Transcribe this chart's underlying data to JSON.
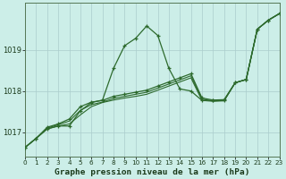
{
  "title": "Graphe pression niveau de la mer (hPa)",
  "bg_color": "#cceee8",
  "grid_color": "#aacccc",
  "line_color": "#2d6a2d",
  "ylim": [
    1016.4,
    1020.15
  ],
  "xlim": [
    0,
    23
  ],
  "yticks": [
    1017,
    1018,
    1019
  ],
  "xticks": [
    0,
    1,
    2,
    3,
    4,
    5,
    6,
    7,
    8,
    9,
    10,
    11,
    12,
    13,
    14,
    15,
    16,
    17,
    18,
    19,
    20,
    21,
    22,
    23
  ],
  "series": [
    {
      "y": [
        1016.63,
        1016.85,
        1017.08,
        1017.15,
        1017.15,
        1017.52,
        1017.72,
        1017.78,
        1018.55,
        1019.1,
        1019.28,
        1019.58,
        1019.35,
        1018.55,
        1018.05,
        1018.0,
        1017.77,
        1017.77,
        1017.77,
        1018.2,
        1018.28,
        1019.5,
        1019.72,
        1019.88
      ],
      "marker": true
    },
    {
      "y": [
        1016.63,
        1016.85,
        1017.08,
        1017.15,
        1017.2,
        1017.42,
        1017.62,
        1017.72,
        1017.78,
        1017.83,
        1017.87,
        1017.92,
        1018.02,
        1018.12,
        1018.22,
        1018.32,
        1017.77,
        1017.75,
        1017.76,
        1018.2,
        1018.28,
        1019.5,
        1019.72,
        1019.88
      ],
      "marker": false
    },
    {
      "y": [
        1016.63,
        1016.85,
        1017.1,
        1017.18,
        1017.27,
        1017.53,
        1017.67,
        1017.73,
        1017.82,
        1017.87,
        1017.92,
        1017.97,
        1018.07,
        1018.17,
        1018.27,
        1018.37,
        1017.8,
        1017.76,
        1017.77,
        1018.2,
        1018.28,
        1019.5,
        1019.72,
        1019.88
      ],
      "marker": false
    },
    {
      "y": [
        1016.63,
        1016.85,
        1017.12,
        1017.2,
        1017.32,
        1017.62,
        1017.73,
        1017.77,
        1017.87,
        1017.92,
        1017.97,
        1018.02,
        1018.12,
        1018.22,
        1018.32,
        1018.42,
        1017.83,
        1017.78,
        1017.79,
        1018.2,
        1018.28,
        1019.5,
        1019.72,
        1019.88
      ],
      "marker": true
    }
  ]
}
